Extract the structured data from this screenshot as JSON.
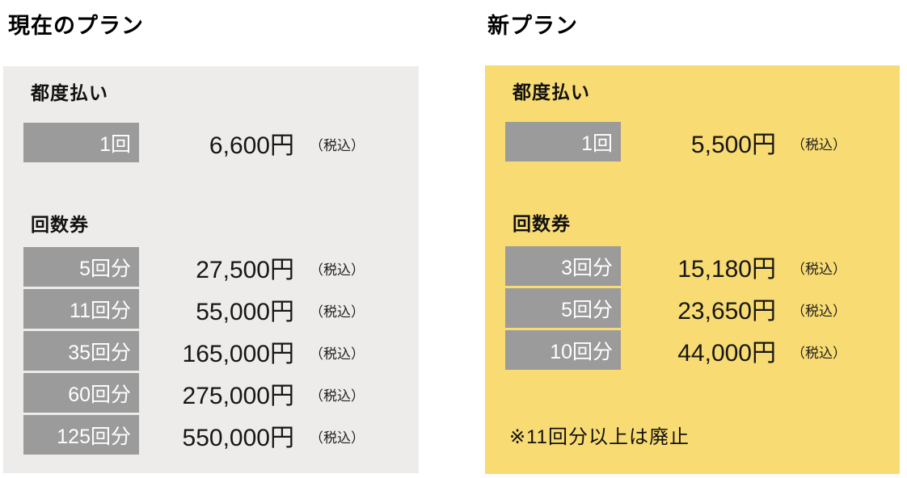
{
  "current_plan": {
    "title": "現在のプラン",
    "pay_per_use": {
      "heading": "都度払い",
      "rows": [
        {
          "badge": "1回",
          "price": "6,600円",
          "tax": "（税込）"
        }
      ]
    },
    "ticket_books": {
      "heading": "回数券",
      "rows": [
        {
          "badge": "5回分",
          "price": "27,500円",
          "tax": "（税込）"
        },
        {
          "badge": "11回分",
          "price": "55,000円",
          "tax": "（税込）"
        },
        {
          "badge": "35回分",
          "price": "165,000円",
          "tax": "（税込）"
        },
        {
          "badge": "60回分",
          "price": "275,000円",
          "tax": "（税込）"
        },
        {
          "badge": "125回分",
          "price": "550,000円",
          "tax": "（税込）"
        }
      ]
    }
  },
  "new_plan": {
    "title": "新プラン",
    "pay_per_use": {
      "heading": "都度払い",
      "rows": [
        {
          "badge": "1回",
          "price": "5,500円",
          "tax": "（税込）"
        }
      ]
    },
    "ticket_books": {
      "heading": "回数券",
      "rows": [
        {
          "badge": "3回分",
          "price": "15,180円",
          "tax": "（税込）"
        },
        {
          "badge": "5回分",
          "price": "23,650円",
          "tax": "（税込）"
        },
        {
          "badge": "10回分",
          "price": "44,000円",
          "tax": "（税込）"
        }
      ]
    },
    "note": "※11回分以上は廃止"
  },
  "colors": {
    "current_panel_bg": "#EDECEA",
    "new_panel_bg": "#F8DB72",
    "badge_bg": "#9B9B9B",
    "badge_text": "#FFFFFF",
    "text": "#111111"
  }
}
